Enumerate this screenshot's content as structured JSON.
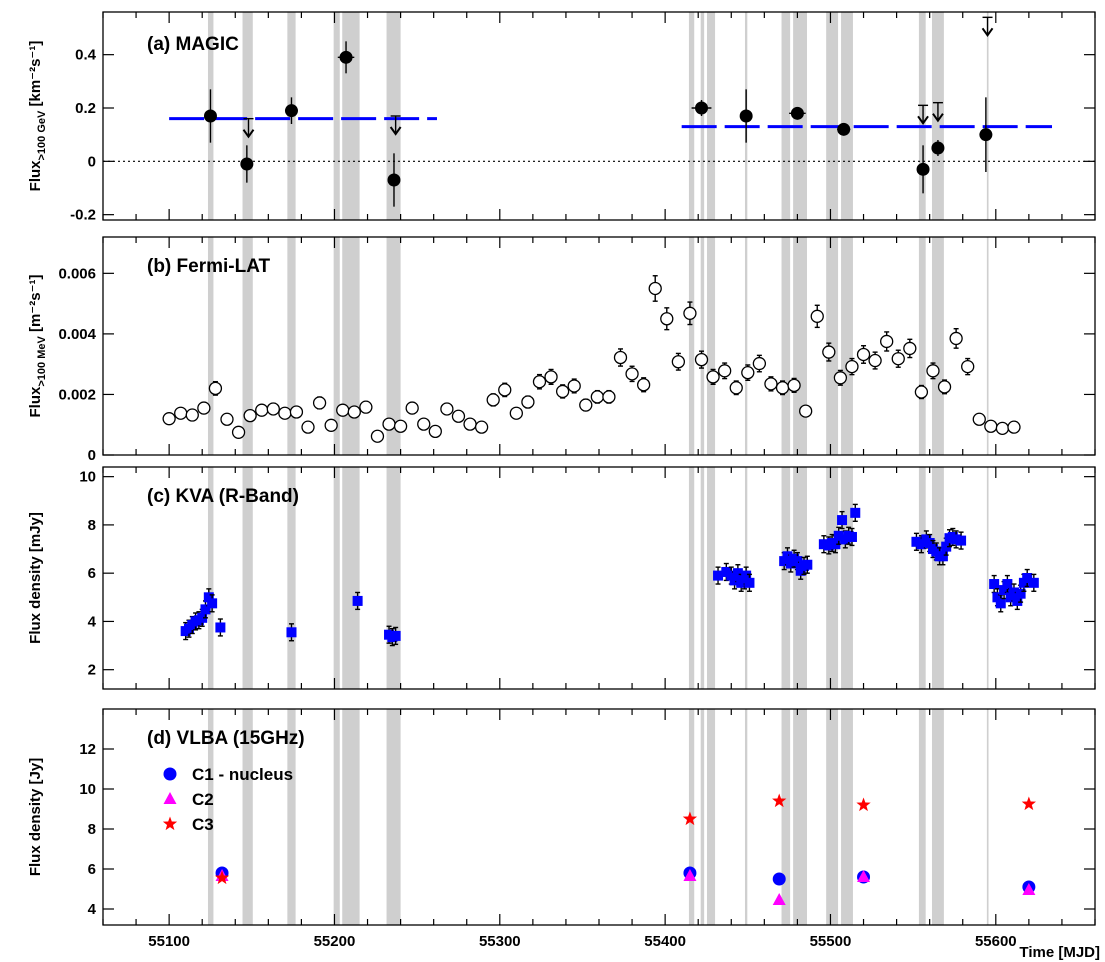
{
  "chart_data": {
    "type": "scatter",
    "shared_x": {
      "label": "Time [MJD]",
      "range": [
        55060,
        55660
      ],
      "ticks": [
        55100,
        55200,
        55300,
        55400,
        55500,
        55600
      ]
    },
    "observation_windows_mjd": [
      [
        55123.5,
        55126.8
      ],
      [
        55144.4,
        55150.6
      ],
      [
        55171.5,
        55176.5
      ],
      [
        55199.5,
        55203.2
      ],
      [
        55204.7,
        55215.2
      ],
      [
        55231.5,
        55240.0
      ],
      [
        55414.4,
        55417.6
      ],
      [
        55421.5,
        55423.6
      ],
      [
        55425.3,
        55430.2
      ],
      [
        55448.3,
        55449.7
      ],
      [
        55470.4,
        55475.6
      ],
      [
        55477.4,
        55485.8
      ],
      [
        55497.4,
        55504.6
      ],
      [
        55506.4,
        55513.6
      ],
      [
        55553.5,
        55557.6
      ],
      [
        55561.4,
        55568.6
      ],
      [
        55594.6,
        55595.6
      ]
    ],
    "panels": [
      {
        "id": "a",
        "title": "(a) MAGIC",
        "ylabel_main": "Flux",
        "ylabel_sub": ">100 GeV",
        "ylabel_unit": "[km⁻²s⁻¹]",
        "ylim": [
          -0.22,
          0.56
        ],
        "yticks": [
          {
            "v": -0.2,
            "t": "-0.2"
          },
          {
            "v": 0,
            "t": "0"
          },
          {
            "v": 0.2,
            "t": "0.2"
          },
          {
            "v": 0.4,
            "t": "0.4"
          }
        ],
        "zero_line": true,
        "points": [
          {
            "x": 55125,
            "y": 0.17,
            "err": 0.1,
            "xerr": 0
          },
          {
            "x": 55147,
            "y": -0.01,
            "err": 0.07,
            "xerr": 0
          },
          {
            "x": 55174,
            "y": 0.19,
            "err": 0.05,
            "xerr": 0
          },
          {
            "x": 55207,
            "y": 0.39,
            "err": 0.06,
            "xerr": 5
          },
          {
            "x": 55236,
            "y": -0.07,
            "err": 0.1,
            "xerr": 0
          },
          {
            "x": 55422,
            "y": 0.2,
            "err": 0.03,
            "xerr": 6
          },
          {
            "x": 55449,
            "y": 0.17,
            "err": 0.1,
            "xerr": 0
          },
          {
            "x": 55480,
            "y": 0.18,
            "err": 0.02,
            "xerr": 5
          },
          {
            "x": 55508,
            "y": 0.12,
            "err": 0.02,
            "xerr": 4
          },
          {
            "x": 55556,
            "y": -0.03,
            "err": 0.09,
            "xerr": 0
          },
          {
            "x": 55565,
            "y": 0.05,
            "err": 0.03,
            "xerr": 0
          },
          {
            "x": 55594,
            "y": 0.1,
            "err": 0.14,
            "xerr": 0
          }
        ],
        "upper_limits": [
          {
            "x": 55148,
            "y": 0.16
          },
          {
            "x": 55237,
            "y": 0.17
          },
          {
            "x": 55556,
            "y": 0.21
          },
          {
            "x": 55565,
            "y": 0.22
          },
          {
            "x": 55595,
            "y": 0.54
          }
        ],
        "dashed_levels": [
          {
            "x0": 55100,
            "x1": 55262,
            "y": 0.16
          },
          {
            "x0": 55410,
            "x1": 55634,
            "y": 0.13
          }
        ]
      },
      {
        "id": "b",
        "title": "(b) Fermi-LAT",
        "ylabel_main": "Flux",
        "ylabel_sub": ">100 MeV",
        "ylabel_unit": "[m⁻²s⁻¹]",
        "ylim": [
          0,
          0.0072
        ],
        "yticks": [
          {
            "v": 0,
            "t": "0"
          },
          {
            "v": 0.002,
            "t": "0.002"
          },
          {
            "v": 0.004,
            "t": "0.004"
          },
          {
            "v": 0.006,
            "t": "0.006"
          }
        ],
        "points": [
          {
            "x": 55100,
            "y": 0.0012
          },
          {
            "x": 55107,
            "y": 0.00138
          },
          {
            "x": 55114,
            "y": 0.00132
          },
          {
            "x": 55121,
            "y": 0.00155
          },
          {
            "x": 55128,
            "y": 0.0022
          },
          {
            "x": 55135,
            "y": 0.00118
          },
          {
            "x": 55142,
            "y": 0.00075
          },
          {
            "x": 55149,
            "y": 0.0013
          },
          {
            "x": 55156,
            "y": 0.00148
          },
          {
            "x": 55163,
            "y": 0.00152
          },
          {
            "x": 55170,
            "y": 0.00138
          },
          {
            "x": 55177,
            "y": 0.00142
          },
          {
            "x": 55184,
            "y": 0.00092
          },
          {
            "x": 55191,
            "y": 0.00172
          },
          {
            "x": 55198,
            "y": 0.00098
          },
          {
            "x": 55205,
            "y": 0.00148
          },
          {
            "x": 55212,
            "y": 0.00142
          },
          {
            "x": 55219,
            "y": 0.00158
          },
          {
            "x": 55226,
            "y": 0.00062
          },
          {
            "x": 55233,
            "y": 0.00102
          },
          {
            "x": 55240,
            "y": 0.00095
          },
          {
            "x": 55247,
            "y": 0.00155
          },
          {
            "x": 55254,
            "y": 0.00102
          },
          {
            "x": 55261,
            "y": 0.00078
          },
          {
            "x": 55268,
            "y": 0.00152
          },
          {
            "x": 55275,
            "y": 0.00128
          },
          {
            "x": 55282,
            "y": 0.00102
          },
          {
            "x": 55289,
            "y": 0.00092
          },
          {
            "x": 55296,
            "y": 0.00182
          },
          {
            "x": 55303,
            "y": 0.00215
          },
          {
            "x": 55310,
            "y": 0.00138
          },
          {
            "x": 55317,
            "y": 0.00175
          },
          {
            "x": 55324,
            "y": 0.00242
          },
          {
            "x": 55331,
            "y": 0.00258
          },
          {
            "x": 55338,
            "y": 0.0021
          },
          {
            "x": 55345,
            "y": 0.00228
          },
          {
            "x": 55352,
            "y": 0.00165
          },
          {
            "x": 55359,
            "y": 0.00192
          },
          {
            "x": 55366,
            "y": 0.00192
          },
          {
            "x": 55373,
            "y": 0.00322
          },
          {
            "x": 55380,
            "y": 0.00268
          },
          {
            "x": 55387,
            "y": 0.00232
          },
          {
            "x": 55394,
            "y": 0.0055
          },
          {
            "x": 55401,
            "y": 0.0045
          },
          {
            "x": 55408,
            "y": 0.00308
          },
          {
            "x": 55415,
            "y": 0.00468
          },
          {
            "x": 55422,
            "y": 0.00315
          },
          {
            "x": 55429,
            "y": 0.00258
          },
          {
            "x": 55436,
            "y": 0.00278
          },
          {
            "x": 55443,
            "y": 0.00222
          },
          {
            "x": 55450,
            "y": 0.00272
          },
          {
            "x": 55457,
            "y": 0.00302
          },
          {
            "x": 55464,
            "y": 0.00235
          },
          {
            "x": 55471,
            "y": 0.00222
          },
          {
            "x": 55478,
            "y": 0.0023
          },
          {
            "x": 55485,
            "y": 0.00145
          },
          {
            "x": 55492,
            "y": 0.00458
          },
          {
            "x": 55499,
            "y": 0.0034
          },
          {
            "x": 55506,
            "y": 0.00255
          },
          {
            "x": 55513,
            "y": 0.00292
          },
          {
            "x": 55520,
            "y": 0.00332
          },
          {
            "x": 55527,
            "y": 0.00312
          },
          {
            "x": 55534,
            "y": 0.00375
          },
          {
            "x": 55541,
            "y": 0.00318
          },
          {
            "x": 55548,
            "y": 0.00352
          },
          {
            "x": 55555,
            "y": 0.00208
          },
          {
            "x": 55562,
            "y": 0.00278
          },
          {
            "x": 55569,
            "y": 0.00225
          },
          {
            "x": 55576,
            "y": 0.00385
          },
          {
            "x": 55583,
            "y": 0.00292
          },
          {
            "x": 55590,
            "y": 0.00118
          },
          {
            "x": 55597,
            "y": 0.00095
          },
          {
            "x": 55604,
            "y": 0.00088
          },
          {
            "x": 55611,
            "y": 0.00092
          }
        ]
      },
      {
        "id": "c",
        "title": "(c) KVA (R-Band)",
        "ylabel": "Flux density [mJy]",
        "ylim": [
          1.2,
          10.4
        ],
        "yticks": [
          {
            "v": 2,
            "t": "2"
          },
          {
            "v": 4,
            "t": "4"
          },
          {
            "v": 6,
            "t": "6"
          },
          {
            "v": 8,
            "t": "8"
          },
          {
            "v": 10,
            "t": "10"
          }
        ],
        "points": [
          {
            "x": 55110,
            "y": 3.6
          },
          {
            "x": 55112,
            "y": 3.7
          },
          {
            "x": 55114,
            "y": 3.85
          },
          {
            "x": 55116,
            "y": 4.0
          },
          {
            "x": 55118,
            "y": 4.05
          },
          {
            "x": 55120,
            "y": 4.15
          },
          {
            "x": 55122,
            "y": 4.5
          },
          {
            "x": 55124,
            "y": 5.0
          },
          {
            "x": 55126,
            "y": 4.75
          },
          {
            "x": 55131,
            "y": 3.75
          },
          {
            "x": 55174,
            "y": 3.55
          },
          {
            "x": 55214,
            "y": 4.85
          },
          {
            "x": 55233,
            "y": 3.45
          },
          {
            "x": 55235,
            "y": 3.35
          },
          {
            "x": 55237,
            "y": 3.4
          },
          {
            "x": 55432,
            "y": 5.9
          },
          {
            "x": 55437,
            "y": 6.05
          },
          {
            "x": 55440,
            "y": 5.9
          },
          {
            "x": 55442,
            "y": 5.7
          },
          {
            "x": 55444,
            "y": 6.0
          },
          {
            "x": 55446,
            "y": 5.6
          },
          {
            "x": 55448,
            "y": 5.7
          },
          {
            "x": 55449,
            "y": 5.9
          },
          {
            "x": 55451,
            "y": 5.6
          },
          {
            "x": 55472,
            "y": 6.5
          },
          {
            "x": 55474,
            "y": 6.7
          },
          {
            "x": 55476,
            "y": 6.4
          },
          {
            "x": 55478,
            "y": 6.6
          },
          {
            "x": 55480,
            "y": 6.5
          },
          {
            "x": 55482,
            "y": 6.1
          },
          {
            "x": 55484,
            "y": 6.3
          },
          {
            "x": 55486,
            "y": 6.35
          },
          {
            "x": 55496,
            "y": 7.2
          },
          {
            "x": 55499,
            "y": 7.15
          },
          {
            "x": 55501,
            "y": 7.25
          },
          {
            "x": 55503,
            "y": 7.2
          },
          {
            "x": 55505,
            "y": 7.55
          },
          {
            "x": 55507,
            "y": 8.2
          },
          {
            "x": 55509,
            "y": 7.4
          },
          {
            "x": 55511,
            "y": 7.55
          },
          {
            "x": 55513,
            "y": 7.5
          },
          {
            "x": 55515,
            "y": 8.5
          },
          {
            "x": 55552,
            "y": 7.3
          },
          {
            "x": 55555,
            "y": 7.2
          },
          {
            "x": 55558,
            "y": 7.4
          },
          {
            "x": 55560,
            "y": 7.25
          },
          {
            "x": 55562,
            "y": 7.0
          },
          {
            "x": 55564,
            "y": 6.9
          },
          {
            "x": 55566,
            "y": 6.7
          },
          {
            "x": 55568,
            "y": 6.7
          },
          {
            "x": 55570,
            "y": 7.1
          },
          {
            "x": 55572,
            "y": 7.45
          },
          {
            "x": 55574,
            "y": 7.5
          },
          {
            "x": 55576,
            "y": 7.4
          },
          {
            "x": 55579,
            "y": 7.35
          },
          {
            "x": 55599,
            "y": 5.55
          },
          {
            "x": 55601,
            "y": 5.0
          },
          {
            "x": 55603,
            "y": 4.75
          },
          {
            "x": 55605,
            "y": 5.3
          },
          {
            "x": 55607,
            "y": 5.55
          },
          {
            "x": 55609,
            "y": 5.0
          },
          {
            "x": 55611,
            "y": 5.2
          },
          {
            "x": 55613,
            "y": 4.85
          },
          {
            "x": 55615,
            "y": 5.15
          },
          {
            "x": 55617,
            "y": 5.6
          },
          {
            "x": 55619,
            "y": 5.8
          },
          {
            "x": 55623,
            "y": 5.6
          }
        ]
      },
      {
        "id": "d",
        "title": "(d) VLBA (15GHz)",
        "ylabel": "Flux density [Jy]",
        "ylim": [
          3.2,
          14.0
        ],
        "yticks": [
          {
            "v": 4,
            "t": "4"
          },
          {
            "v": 6,
            "t": "6"
          },
          {
            "v": 8,
            "t": "8"
          },
          {
            "v": 10,
            "t": "10"
          },
          {
            "v": 12,
            "t": "12"
          }
        ],
        "series": [
          {
            "name": "C1 - nucleus",
            "marker": "circle",
            "color": "#0000ff",
            "points": [
              {
                "x": 55132,
                "y": 5.8
              },
              {
                "x": 55415,
                "y": 5.8
              },
              {
                "x": 55469,
                "y": 5.5
              },
              {
                "x": 55520,
                "y": 5.6
              },
              {
                "x": 55620,
                "y": 5.1
              }
            ]
          },
          {
            "name": "C2",
            "marker": "triangle",
            "color": "#ff00ff",
            "points": [
              {
                "x": 55132,
                "y": 5.65
              },
              {
                "x": 55415,
                "y": 5.65
              },
              {
                "x": 55469,
                "y": 4.45
              },
              {
                "x": 55520,
                "y": 5.6
              },
              {
                "x": 55620,
                "y": 4.95
              }
            ]
          },
          {
            "name": "C3",
            "marker": "star",
            "color": "#ff0000",
            "points": [
              {
                "x": 55132,
                "y": 5.55
              },
              {
                "x": 55415,
                "y": 8.5
              },
              {
                "x": 55469,
                "y": 9.4
              },
              {
                "x": 55520,
                "y": 9.2
              },
              {
                "x": 55620,
                "y": 9.25
              }
            ]
          }
        ]
      }
    ]
  }
}
